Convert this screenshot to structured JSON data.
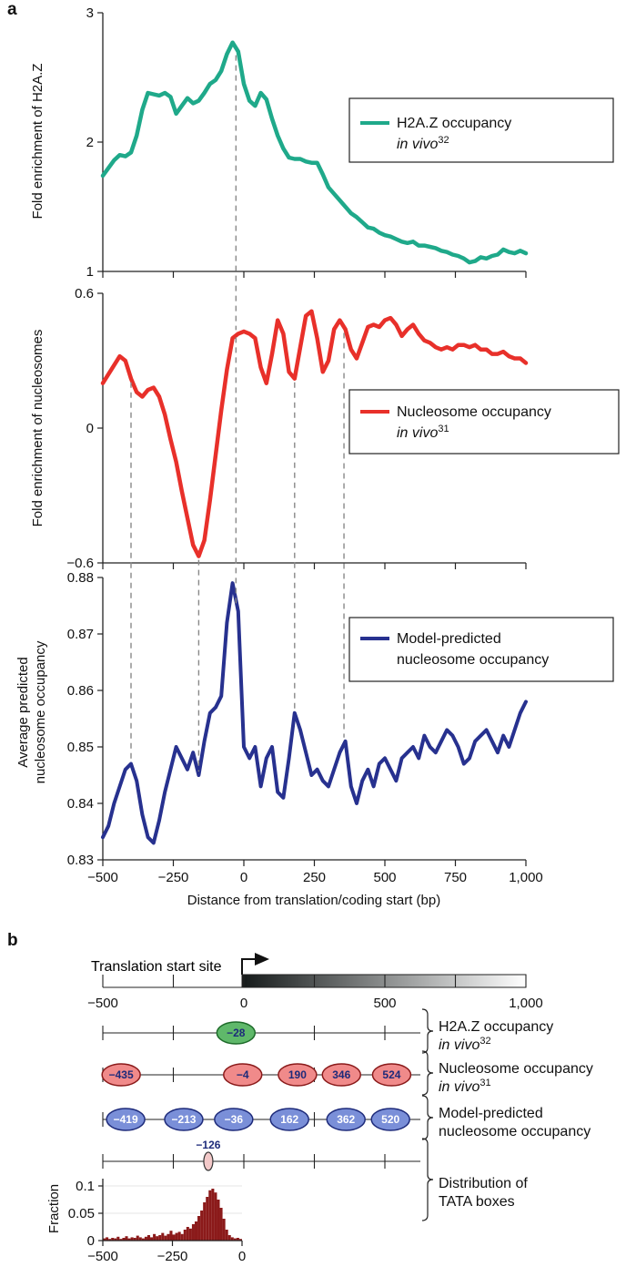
{
  "panel_a_label": "a",
  "panel_b_label": "b",
  "chart_data": [
    {
      "type": "line",
      "ylabel": "Fold enrichment of H2A.Z",
      "ylim": [
        1,
        3
      ],
      "yticks": [
        "1",
        "2",
        "3"
      ],
      "xlim": [
        -500,
        1000
      ],
      "legend": {
        "line1": "H2A.Z occupancy",
        "line2": "in vivo",
        "sup": "32",
        "placement": "right"
      },
      "color": "#1fa98a",
      "series": [
        {
          "x": [
            -500,
            -480,
            -460,
            -440,
            -420,
            -400,
            -380,
            -360,
            -340,
            -320,
            -300,
            -280,
            -260,
            -240,
            -220,
            -200,
            -180,
            -160,
            -140,
            -120,
            -100,
            -80,
            -60,
            -40,
            -20,
            0,
            20,
            40,
            60,
            80,
            100,
            120,
            140,
            160,
            180,
            200,
            220,
            240,
            260,
            280,
            300,
            320,
            340,
            360,
            380,
            400,
            420,
            440,
            460,
            480,
            500,
            520,
            540,
            560,
            580,
            600,
            620,
            640,
            660,
            680,
            700,
            720,
            740,
            760,
            780,
            800,
            820,
            840,
            860,
            880,
            900,
            920,
            940,
            960,
            980,
            1000
          ],
          "values": [
            1.74,
            1.8,
            1.86,
            1.9,
            1.89,
            1.92,
            2.05,
            2.25,
            2.38,
            2.37,
            2.36,
            2.38,
            2.35,
            2.22,
            2.28,
            2.34,
            2.3,
            2.32,
            2.38,
            2.45,
            2.48,
            2.55,
            2.68,
            2.77,
            2.7,
            2.45,
            2.32,
            2.28,
            2.38,
            2.33,
            2.18,
            2.05,
            1.95,
            1.88,
            1.87,
            1.87,
            1.85,
            1.84,
            1.84,
            1.75,
            1.65,
            1.6,
            1.55,
            1.5,
            1.45,
            1.42,
            1.38,
            1.34,
            1.33,
            1.3,
            1.28,
            1.27,
            1.25,
            1.23,
            1.22,
            1.23,
            1.2,
            1.2,
            1.19,
            1.18,
            1.16,
            1.15,
            1.13,
            1.12,
            1.1,
            1.07,
            1.08,
            1.11,
            1.1,
            1.12,
            1.13,
            1.17,
            1.15,
            1.14,
            1.16,
            1.14
          ]
        }
      ]
    },
    {
      "type": "line",
      "ylabel": "Fold enrichment of nucleosomes",
      "ylim": [
        -0.6,
        0.6
      ],
      "yticks": [
        "−0.6",
        "0",
        "0.6"
      ],
      "xlim": [
        -500,
        1000
      ],
      "legend": {
        "line1": "Nucleosome occupancy",
        "line2": "in vivo",
        "sup": "31",
        "placement": "right"
      },
      "color": "#e8302a",
      "series": [
        {
          "x": [
            -500,
            -480,
            -460,
            -440,
            -420,
            -400,
            -380,
            -360,
            -340,
            -320,
            -300,
            -280,
            -260,
            -240,
            -220,
            -200,
            -180,
            -160,
            -140,
            -120,
            -100,
            -80,
            -60,
            -40,
            -20,
            0,
            20,
            40,
            60,
            80,
            100,
            120,
            140,
            160,
            180,
            200,
            220,
            240,
            260,
            280,
            300,
            320,
            340,
            360,
            380,
            400,
            420,
            440,
            460,
            480,
            500,
            520,
            540,
            560,
            580,
            600,
            620,
            640,
            660,
            680,
            700,
            720,
            740,
            760,
            780,
            800,
            820,
            840,
            860,
            880,
            900,
            920,
            940,
            960,
            980,
            1000
          ],
          "values": [
            0.2,
            0.24,
            0.28,
            0.32,
            0.3,
            0.22,
            0.16,
            0.14,
            0.17,
            0.18,
            0.14,
            0.06,
            -0.05,
            -0.15,
            -0.28,
            -0.4,
            -0.52,
            -0.57,
            -0.5,
            -0.32,
            -0.12,
            0.08,
            0.26,
            0.4,
            0.42,
            0.43,
            0.42,
            0.4,
            0.27,
            0.2,
            0.33,
            0.48,
            0.42,
            0.25,
            0.22,
            0.36,
            0.5,
            0.52,
            0.4,
            0.25,
            0.3,
            0.44,
            0.48,
            0.44,
            0.35,
            0.31,
            0.38,
            0.45,
            0.46,
            0.45,
            0.48,
            0.49,
            0.46,
            0.41,
            0.44,
            0.46,
            0.42,
            0.39,
            0.38,
            0.36,
            0.35,
            0.36,
            0.35,
            0.37,
            0.37,
            0.36,
            0.37,
            0.35,
            0.35,
            0.33,
            0.33,
            0.34,
            0.32,
            0.31,
            0.31,
            0.29
          ]
        }
      ]
    },
    {
      "type": "line",
      "ylabel": "Average predicted nucleosome occupancy",
      "ylim": [
        0.83,
        0.88
      ],
      "yticks": [
        "0.83",
        "0.84",
        "0.85",
        "0.86",
        "0.87",
        "0.88"
      ],
      "xlim": [
        -500,
        1000
      ],
      "xticks": [
        "−500",
        "−250",
        "0",
        "250",
        "500",
        "750",
        "1,000"
      ],
      "xlabel": "Distance from translation/coding start (bp)",
      "legend": {
        "line1": "Model-predicted",
        "line2": "nucleosome occupancy",
        "placement": "right"
      },
      "color": "#27318f",
      "series": [
        {
          "x": [
            -500,
            -480,
            -460,
            -440,
            -420,
            -400,
            -380,
            -360,
            -340,
            -320,
            -300,
            -280,
            -260,
            -240,
            -220,
            -200,
            -180,
            -160,
            -140,
            -120,
            -100,
            -80,
            -60,
            -40,
            -20,
            0,
            20,
            40,
            60,
            80,
            100,
            120,
            140,
            160,
            180,
            200,
            220,
            240,
            260,
            280,
            300,
            320,
            340,
            360,
            380,
            400,
            420,
            440,
            460,
            480,
            500,
            520,
            540,
            560,
            580,
            600,
            620,
            640,
            660,
            680,
            700,
            720,
            740,
            760,
            780,
            800,
            820,
            840,
            860,
            880,
            900,
            920,
            940,
            960,
            980,
            1000
          ],
          "values": [
            0.834,
            0.836,
            0.84,
            0.843,
            0.846,
            0.847,
            0.844,
            0.838,
            0.834,
            0.833,
            0.837,
            0.842,
            0.846,
            0.85,
            0.848,
            0.846,
            0.849,
            0.845,
            0.851,
            0.856,
            0.857,
            0.859,
            0.872,
            0.879,
            0.874,
            0.85,
            0.848,
            0.85,
            0.843,
            0.848,
            0.85,
            0.842,
            0.841,
            0.848,
            0.856,
            0.853,
            0.849,
            0.845,
            0.846,
            0.844,
            0.843,
            0.846,
            0.849,
            0.851,
            0.843,
            0.84,
            0.844,
            0.846,
            0.843,
            0.847,
            0.848,
            0.846,
            0.844,
            0.848,
            0.849,
            0.85,
            0.848,
            0.852,
            0.85,
            0.849,
            0.851,
            0.853,
            0.852,
            0.85,
            0.847,
            0.848,
            0.851,
            0.852,
            0.853,
            0.851,
            0.849,
            0.852,
            0.85,
            0.853,
            0.856,
            0.858
          ]
        }
      ]
    },
    {
      "type": "bar",
      "ylabel": "Fraction",
      "ylim": [
        0,
        0.11
      ],
      "yticks": [
        "0",
        "0.05",
        "0.1"
      ],
      "xlim": [
        -500,
        0
      ],
      "xticks": [
        "−500",
        "−250",
        "0"
      ],
      "color": "#8b1a1a",
      "x": [
        -500,
        -490,
        -480,
        -470,
        -460,
        -450,
        -440,
        -430,
        -420,
        -410,
        -400,
        -390,
        -380,
        -370,
        -360,
        -350,
        -340,
        -330,
        -320,
        -310,
        -300,
        -290,
        -280,
        -270,
        -260,
        -250,
        -240,
        -230,
        -220,
        -210,
        -200,
        -190,
        -180,
        -170,
        -160,
        -150,
        -140,
        -130,
        -120,
        -110,
        -100,
        -90,
        -80,
        -70,
        -60,
        -50,
        -40,
        -30,
        -20,
        -10
      ],
      "values": [
        0.004,
        0.006,
        0.003,
        0.005,
        0.004,
        0.007,
        0.003,
        0.005,
        0.008,
        0.004,
        0.006,
        0.005,
        0.009,
        0.006,
        0.004,
        0.007,
        0.01,
        0.006,
        0.012,
        0.008,
        0.01,
        0.014,
        0.009,
        0.012,
        0.018,
        0.011,
        0.014,
        0.016,
        0.012,
        0.02,
        0.025,
        0.022,
        0.03,
        0.035,
        0.045,
        0.055,
        0.07,
        0.08,
        0.092,
        0.095,
        0.088,
        0.075,
        0.06,
        0.04,
        0.02,
        0.01,
        0.006,
        0.004,
        0.005,
        0.003
      ]
    }
  ],
  "panel_b": {
    "title": "Translation start site",
    "scale_ticks": [
      "−500",
      "0",
      "500",
      "1,000"
    ],
    "tracks": [
      {
        "label1": "H2A.Z occupancy",
        "label2": "in vivo",
        "sup": "32",
        "color": "green",
        "nucleosomes": [
          "−28"
        ],
        "positions": [
          -28
        ]
      },
      {
        "label1": "Nucleosome occupancy",
        "label2": "in vivo",
        "sup": "31",
        "color": "red",
        "nucleosomes": [
          "−435",
          "−4",
          "190",
          "346",
          "524"
        ],
        "positions": [
          -435,
          -4,
          190,
          346,
          524
        ]
      },
      {
        "label1": "Model-predicted",
        "label2": "nucleosome occupancy",
        "color": "blue",
        "nucleosomes": [
          "−419",
          "−213",
          "−36",
          "162",
          "362",
          "520"
        ],
        "positions": [
          -419,
          -213,
          -36,
          162,
          362,
          520
        ]
      }
    ],
    "tata": {
      "label1": "Distribution of",
      "label2": "TATA boxes",
      "marker": "−126",
      "position": -126
    },
    "colors": {
      "green": {
        "fill": "#5fb86a",
        "stroke": "#1e6b2a",
        "text": "#1d2a7a"
      },
      "red": {
        "fill": "#f08a8a",
        "stroke": "#8a1a1a",
        "text": "#1d2a7a"
      },
      "blue": {
        "fill": "#7a8fd8",
        "stroke": "#1d2a7a",
        "text": "#ffffff"
      }
    }
  }
}
